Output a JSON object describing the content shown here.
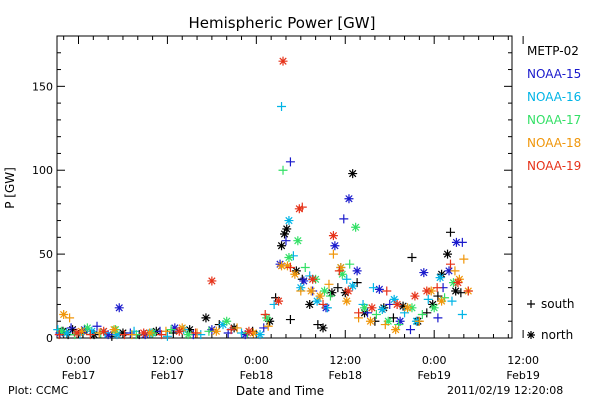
{
  "chart_data": {
    "type": "scatter",
    "title": "Hemispheric Power [GW]",
    "ylabel": "P [GW]",
    "xlabel": "Date and Time",
    "ylim": [
      0,
      180
    ],
    "xlim": [
      -2.9,
      58.5
    ],
    "xunit": "hours since 2011/02/17 00:00",
    "yticks": [
      0,
      50,
      100,
      150
    ],
    "xticks": [
      {
        "x": 0,
        "time": "0:00",
        "date": "Feb17"
      },
      {
        "x": 12,
        "time": "12:00",
        "date": "Feb17"
      },
      {
        "x": 24,
        "time": "0:00",
        "date": "Feb18"
      },
      {
        "x": 36,
        "time": "12:00",
        "date": "Feb18"
      },
      {
        "x": 48,
        "time": "0:00",
        "date": "Feb19"
      },
      {
        "x": 60,
        "time": "12:00",
        "date": "Feb19"
      }
    ],
    "marker_legend": [
      {
        "symbol": "+",
        "label": "south"
      },
      {
        "symbol": "*",
        "label": "north"
      }
    ],
    "series": [
      {
        "name": "METP-02",
        "color": "#000000",
        "points": [
          [
            -2.1,
            4,
            "*"
          ],
          [
            -1.4,
            2,
            "+"
          ],
          [
            -0.8,
            5,
            "*"
          ],
          [
            0.6,
            3,
            "+"
          ],
          [
            2.1,
            2,
            "*"
          ],
          [
            4.5,
            1,
            "+"
          ],
          [
            6.0,
            3,
            "*"
          ],
          [
            8.2,
            2,
            "+"
          ],
          [
            10.5,
            4,
            "*"
          ],
          [
            12.8,
            3,
            "+"
          ],
          [
            15.0,
            5,
            "*"
          ],
          [
            17.2,
            12,
            "*"
          ],
          [
            19.0,
            8,
            "+"
          ],
          [
            21.0,
            6,
            "*"
          ],
          [
            23.5,
            4,
            "+"
          ],
          [
            25.8,
            10,
            "*"
          ],
          [
            26.6,
            24,
            "+"
          ],
          [
            27.4,
            55,
            "*"
          ],
          [
            27.8,
            62,
            "*"
          ],
          [
            28.1,
            65,
            "*"
          ],
          [
            28.6,
            11,
            "+"
          ],
          [
            29.4,
            40,
            "*"
          ],
          [
            30.2,
            35,
            "+"
          ],
          [
            31.2,
            20,
            "*"
          ],
          [
            32.3,
            8,
            "+"
          ],
          [
            33.0,
            6,
            "*"
          ],
          [
            34.2,
            27,
            "*"
          ],
          [
            35.0,
            30,
            "+"
          ],
          [
            36.0,
            27,
            "*"
          ],
          [
            37.0,
            98,
            "*"
          ],
          [
            37.6,
            33,
            "+"
          ],
          [
            38.6,
            15,
            "*"
          ],
          [
            40.0,
            10,
            "+"
          ],
          [
            41.2,
            18,
            "*"
          ],
          [
            42.5,
            12,
            "+"
          ],
          [
            43.8,
            19,
            "*"
          ],
          [
            45.0,
            48,
            "+"
          ],
          [
            45.8,
            10,
            "*"
          ],
          [
            47.0,
            15,
            "+"
          ],
          [
            47.8,
            20,
            "*"
          ],
          [
            49.0,
            38,
            "*"
          ],
          [
            50.2,
            63,
            "+"
          ],
          [
            50.9,
            28,
            "*"
          ],
          [
            51.6,
            27,
            "+"
          ],
          [
            49.8,
            50,
            "*"
          ],
          [
            48.5,
            25,
            "+"
          ]
        ]
      },
      {
        "name": "NOAA-15",
        "color": "#1a1acc",
        "points": [
          [
            -2.5,
            3,
            "*"
          ],
          [
            -1.0,
            6,
            "+"
          ],
          [
            0.8,
            5,
            "*"
          ],
          [
            2.5,
            7,
            "+"
          ],
          [
            4.0,
            2,
            "*"
          ],
          [
            5.5,
            18,
            "*"
          ],
          [
            7.0,
            3,
            "+"
          ],
          [
            9.0,
            2,
            "*"
          ],
          [
            11.0,
            4,
            "+"
          ],
          [
            13.0,
            6,
            "*"
          ],
          [
            15.5,
            2,
            "+"
          ],
          [
            18.0,
            5,
            "*"
          ],
          [
            20.2,
            3,
            "+"
          ],
          [
            22.5,
            2,
            "*"
          ],
          [
            25.0,
            6,
            "+"
          ],
          [
            27.2,
            44,
            "*"
          ],
          [
            28.0,
            58,
            "+"
          ],
          [
            28.6,
            105,
            "+"
          ],
          [
            30.4,
            34,
            "*"
          ],
          [
            31.6,
            28,
            "+"
          ],
          [
            33.4,
            18,
            "*"
          ],
          [
            34.6,
            55,
            "*"
          ],
          [
            35.8,
            71,
            "+"
          ],
          [
            36.5,
            83,
            "*"
          ],
          [
            37.6,
            40,
            "*"
          ],
          [
            39.0,
            15,
            "+"
          ],
          [
            40.6,
            29,
            "*"
          ],
          [
            42.0,
            20,
            "+"
          ],
          [
            43.4,
            10,
            "*"
          ],
          [
            44.8,
            5,
            "+"
          ],
          [
            46.6,
            39,
            "*"
          ],
          [
            48.5,
            12,
            "+"
          ],
          [
            50.0,
            40,
            "*"
          ],
          [
            51.0,
            57,
            "*"
          ],
          [
            51.8,
            57,
            "+"
          ],
          [
            49.2,
            30,
            "+"
          ]
        ]
      },
      {
        "name": "NOAA-16",
        "color": "#00b4e6",
        "points": [
          [
            -2.8,
            5,
            "+"
          ],
          [
            -1.6,
            3,
            "*"
          ],
          [
            0.2,
            2,
            "+"
          ],
          [
            1.8,
            4,
            "*"
          ],
          [
            3.6,
            3,
            "+"
          ],
          [
            5.2,
            2,
            "*"
          ],
          [
            7.5,
            4,
            "+"
          ],
          [
            9.8,
            3,
            "*"
          ],
          [
            12.0,
            1,
            "+"
          ],
          [
            14.2,
            5,
            "*"
          ],
          [
            16.5,
            2,
            "+"
          ],
          [
            19.5,
            8,
            "*"
          ],
          [
            22.0,
            3,
            "+"
          ],
          [
            24.5,
            2,
            "*"
          ],
          [
            26.4,
            20,
            "+"
          ],
          [
            27.4,
            138,
            "+"
          ],
          [
            28.4,
            70,
            "*"
          ],
          [
            29.0,
            49,
            "+"
          ],
          [
            30.0,
            30,
            "*"
          ],
          [
            31.2,
            37,
            "+"
          ],
          [
            32.2,
            22,
            "*"
          ],
          [
            33.6,
            18,
            "+"
          ],
          [
            35.4,
            42,
            "*"
          ],
          [
            36.2,
            35,
            "+"
          ],
          [
            37.0,
            31,
            "*"
          ],
          [
            38.4,
            20,
            "+"
          ],
          [
            39.8,
            30,
            "+"
          ],
          [
            41.0,
            17,
            "*"
          ],
          [
            42.6,
            23,
            "*"
          ],
          [
            44.0,
            15,
            "+"
          ],
          [
            45.6,
            10,
            "*"
          ],
          [
            47.2,
            23,
            "+"
          ],
          [
            48.8,
            36,
            "*"
          ],
          [
            50.4,
            22,
            "+"
          ],
          [
            51.8,
            14,
            "+"
          ]
        ]
      },
      {
        "name": "NOAA-17",
        "color": "#33e066",
        "points": [
          [
            -2.3,
            4,
            "*"
          ],
          [
            -0.5,
            2,
            "+"
          ],
          [
            1.2,
            6,
            "*"
          ],
          [
            3.0,
            3,
            "+"
          ],
          [
            5.0,
            5,
            "*"
          ],
          [
            7.8,
            2,
            "+"
          ],
          [
            10.0,
            3,
            "*"
          ],
          [
            12.5,
            5,
            "+"
          ],
          [
            14.8,
            2,
            "*"
          ],
          [
            17.6,
            4,
            "+"
          ],
          [
            20.0,
            10,
            "*"
          ],
          [
            22.8,
            3,
            "+"
          ],
          [
            25.4,
            12,
            "*"
          ],
          [
            27.6,
            100,
            "+"
          ],
          [
            28.4,
            48,
            "*"
          ],
          [
            29.6,
            58,
            "*"
          ],
          [
            30.6,
            42,
            "+"
          ],
          [
            32.0,
            35,
            "*"
          ],
          [
            33.2,
            28,
            "*"
          ],
          [
            34.0,
            25,
            "+"
          ],
          [
            35.6,
            38,
            "*"
          ],
          [
            36.6,
            44,
            "+"
          ],
          [
            37.4,
            66,
            "*"
          ],
          [
            38.6,
            18,
            "*"
          ],
          [
            40.2,
            14,
            "+"
          ],
          [
            41.8,
            10,
            "*"
          ],
          [
            43.2,
            8,
            "+"
          ],
          [
            45.0,
            18,
            "*"
          ],
          [
            46.4,
            14,
            "+"
          ],
          [
            48.0,
            18,
            "*"
          ],
          [
            49.4,
            24,
            "+"
          ],
          [
            50.6,
            33,
            "*"
          ]
        ]
      },
      {
        "name": "NOAA-18",
        "color": "#f0960a",
        "points": [
          [
            -2.0,
            14,
            "*"
          ],
          [
            -1.2,
            12,
            "+"
          ],
          [
            0.4,
            4,
            "*"
          ],
          [
            2.8,
            3,
            "+"
          ],
          [
            4.8,
            5,
            "*"
          ],
          [
            7.2,
            2,
            "+"
          ],
          [
            9.6,
            3,
            "*"
          ],
          [
            11.8,
            4,
            "+"
          ],
          [
            14.0,
            6,
            "*"
          ],
          [
            16.0,
            3,
            "+"
          ],
          [
            18.6,
            4,
            "*"
          ],
          [
            21.4,
            6,
            "+"
          ],
          [
            23.6,
            3,
            "*"
          ],
          [
            25.6,
            7,
            "+"
          ],
          [
            27.4,
            43,
            "*"
          ],
          [
            28.2,
            43,
            "*"
          ],
          [
            29.2,
            38,
            "*"
          ],
          [
            30.0,
            28,
            "+"
          ],
          [
            31.4,
            28,
            "*"
          ],
          [
            32.6,
            25,
            "*"
          ],
          [
            33.8,
            32,
            "+"
          ],
          [
            34.4,
            50,
            "+"
          ],
          [
            35.4,
            42,
            "*"
          ],
          [
            36.2,
            22,
            "*"
          ],
          [
            37.8,
            12,
            "+"
          ],
          [
            39.4,
            10,
            "*"
          ],
          [
            41.4,
            8,
            "+"
          ],
          [
            42.8,
            5,
            "*"
          ],
          [
            44.4,
            18,
            "*"
          ],
          [
            46.0,
            10,
            "+"
          ],
          [
            47.6,
            28,
            "*"
          ],
          [
            49.0,
            22,
            "*"
          ],
          [
            50.8,
            40,
            "+"
          ],
          [
            51.4,
            35,
            "*"
          ],
          [
            52.0,
            47,
            "+"
          ],
          [
            52.6,
            28,
            "*"
          ]
        ]
      },
      {
        "name": "NOAA-19",
        "color": "#e63219",
        "points": [
          [
            -2.6,
            2,
            "+"
          ],
          [
            -0.2,
            3,
            "*"
          ],
          [
            1.6,
            2,
            "+"
          ],
          [
            3.4,
            4,
            "*"
          ],
          [
            6.2,
            2,
            "+"
          ],
          [
            8.8,
            3,
            "*"
          ],
          [
            11.2,
            2,
            "+"
          ],
          [
            13.6,
            4,
            "*"
          ],
          [
            15.8,
            3,
            "+"
          ],
          [
            18.0,
            34,
            "*"
          ],
          [
            20.6,
            5,
            "+"
          ],
          [
            23.0,
            4,
            "*"
          ],
          [
            25.2,
            14,
            "+"
          ],
          [
            27.0,
            22,
            "*"
          ],
          [
            27.6,
            165,
            "*"
          ],
          [
            28.6,
            42,
            "+"
          ],
          [
            29.8,
            77,
            "*"
          ],
          [
            30.2,
            78,
            "+"
          ],
          [
            31.6,
            35,
            "*"
          ],
          [
            33.0,
            20,
            "+"
          ],
          [
            34.4,
            61,
            "*"
          ],
          [
            35.2,
            40,
            "+"
          ],
          [
            36.4,
            28,
            "*"
          ],
          [
            37.8,
            15,
            "+"
          ],
          [
            39.6,
            18,
            "*"
          ],
          [
            41.6,
            28,
            "+"
          ],
          [
            43.0,
            20,
            "*"
          ],
          [
            45.4,
            25,
            "*"
          ],
          [
            47.0,
            28,
            "*"
          ],
          [
            48.4,
            30,
            "+"
          ],
          [
            50.2,
            44,
            "+"
          ],
          [
            51.2,
            33,
            "*"
          ],
          [
            52.6,
            28,
            "+"
          ]
        ]
      }
    ]
  },
  "footer": {
    "source": "Plot: CCMC",
    "generated": "2011/02/19 12:20:08"
  }
}
